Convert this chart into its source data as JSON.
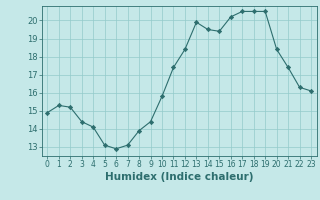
{
  "x": [
    0,
    1,
    2,
    3,
    4,
    5,
    6,
    7,
    8,
    9,
    10,
    11,
    12,
    13,
    14,
    15,
    16,
    17,
    18,
    19,
    20,
    21,
    22,
    23
  ],
  "y": [
    14.9,
    15.3,
    15.2,
    14.4,
    14.1,
    13.1,
    12.9,
    13.1,
    13.9,
    14.4,
    15.8,
    17.4,
    18.4,
    19.9,
    19.5,
    19.4,
    20.2,
    20.5,
    20.5,
    20.5,
    18.4,
    17.4,
    16.3,
    16.1
  ],
  "line_color": "#2d6e6e",
  "marker": "D",
  "marker_size": 2.2,
  "bg_color": "#c5e8e8",
  "grid_color": "#93cbcb",
  "tick_color": "#2d6e6e",
  "xlabel": "Humidex (Indice chaleur)",
  "xlabel_fontsize": 7.5,
  "title": "",
  "ylim": [
    12.5,
    20.8
  ],
  "xlim": [
    -0.5,
    23.5
  ],
  "yticks": [
    13,
    14,
    15,
    16,
    17,
    18,
    19,
    20
  ],
  "xticks": [
    0,
    1,
    2,
    3,
    4,
    5,
    6,
    7,
    8,
    9,
    10,
    11,
    12,
    13,
    14,
    15,
    16,
    17,
    18,
    19,
    20,
    21,
    22,
    23
  ]
}
